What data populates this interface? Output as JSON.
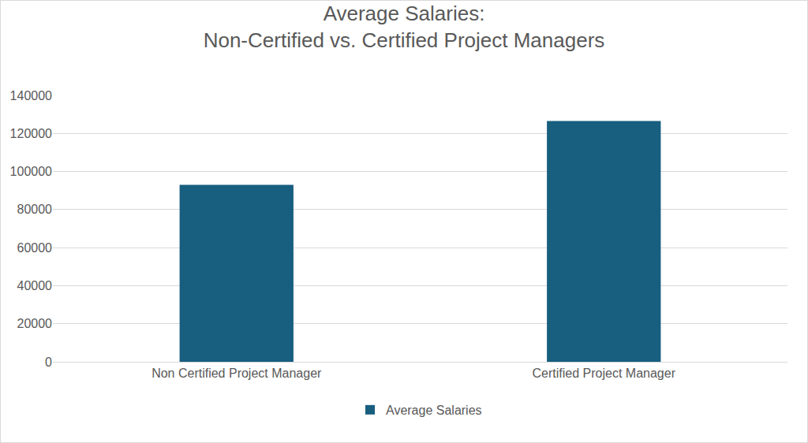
{
  "chart_data": {
    "type": "bar",
    "title": [
      "Average Salaries:",
      "Non-Certified vs. Certified Project Managers"
    ],
    "categories": [
      "Non Certified Project Manager",
      "Certified Project Manager"
    ],
    "series": [
      {
        "name": "Average Salaries",
        "color": "#175e7f",
        "values": [
          93000,
          126500
        ]
      }
    ],
    "ylim": [
      0,
      140000
    ],
    "yticks": [
      0,
      20000,
      40000,
      60000,
      80000,
      100000,
      120000,
      140000
    ],
    "grid": true,
    "legend": "bottom"
  }
}
